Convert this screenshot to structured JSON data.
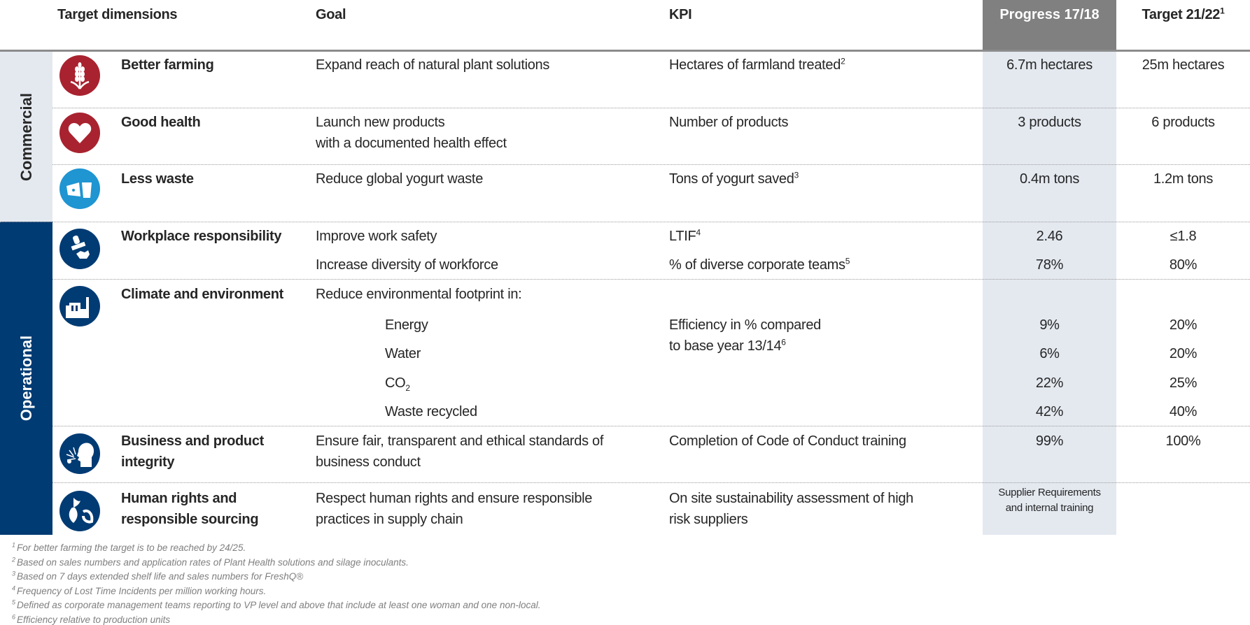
{
  "header": {
    "target_dimensions": "Target dimensions",
    "goal": "Goal",
    "kpi": "KPI",
    "progress": "Progress 17/18",
    "target": "Target 21/22",
    "target_sup": "1"
  },
  "groups": {
    "commercial": "Commercial",
    "operational": "Operational"
  },
  "colors": {
    "navy": "#003b73",
    "red": "#a8232f",
    "light_blue": "#1f95d2",
    "band_light": "#e4e9f0",
    "header_gray": "#808080"
  },
  "rows": [
    {
      "icon": "wheat-icon",
      "name": "Better farming",
      "goal": "Expand reach of natural plant solutions",
      "kpi": "Hectares of farmland treated",
      "kpi_sup": "2",
      "progress": "6.7m hectares",
      "target": "25m hectares"
    },
    {
      "icon": "heart-icon",
      "name": "Good health",
      "goal": "Launch new products",
      "goal2": "with a documented health effect",
      "kpi": "Number of products",
      "progress": "3 products",
      "target": "6 products"
    },
    {
      "icon": "food-waste-icon",
      "name": "Less waste",
      "goal": "Reduce global yogurt waste",
      "kpi": "Tons of yogurt saved",
      "kpi_sup": "3",
      "progress": "0.4m tons",
      "target": "1.2m tons"
    },
    {
      "icon": "safety-stamp-icon",
      "name": "Workplace responsibility",
      "goal": "Improve work safety",
      "kpi": "LTIF",
      "kpi_sup": "4",
      "progress": "2.46",
      "target": "≤1.8",
      "goal_b": "Increase diversity of workforce",
      "kpi_b": "% of diverse corporate teams",
      "kpi_b_sup": "5",
      "progress_b": "78%",
      "target_b": "80%"
    },
    {
      "icon": "factory-icon",
      "name": "Climate and environment",
      "goal": "Reduce environmental footprint in:",
      "kpi": "Efficiency in % compared",
      "kpi2": "to base year 13/14",
      "kpi2_sup": "6",
      "sub": [
        {
          "label": "Energy",
          "progress": "9%",
          "target": "20%"
        },
        {
          "label": "Water",
          "progress": "6%",
          "target": "20%"
        },
        {
          "label": "CO",
          "label_sub": "2",
          "progress": "22%",
          "target": "25%"
        },
        {
          "label": "Waste recycled",
          "progress": "42%",
          "target": "40%"
        }
      ]
    },
    {
      "icon": "whistleblower-icon",
      "name": "Business and product",
      "name2": "integrity",
      "goal": "Ensure fair, transparent and ethical standards of",
      "goal2": "business conduct",
      "kpi": "Completion of Code of Conduct training",
      "progress": "99%",
      "target": "100%"
    },
    {
      "icon": "sourcing-icon",
      "name": "Human rights and",
      "name2": "responsible sourcing",
      "goal": "Respect human rights and ensure responsible",
      "goal2": "practices in supply chain",
      "kpi": "On site sustainability assessment of high",
      "kpi2": "risk suppliers",
      "progress": "Supplier Requirements",
      "progress2": "and internal training"
    }
  ],
  "footnotes": [
    {
      "num": "1",
      "text": "For better farming the target is to be reached by 24/25."
    },
    {
      "num": "2",
      "text": "Based on sales numbers and application rates of Plant Health solutions and silage inoculants."
    },
    {
      "num": "3",
      "text": "Based on 7 days extended shelf life and sales numbers for FreshQ®"
    },
    {
      "num": "4",
      "text": "Frequency of Lost Time Incidents per million working hours."
    },
    {
      "num": "5",
      "text": "Defined as corporate management teams reporting to VP level and above that include at least one woman and one non-local."
    },
    {
      "num": "6",
      "text": "Efficiency relative to production units"
    }
  ]
}
